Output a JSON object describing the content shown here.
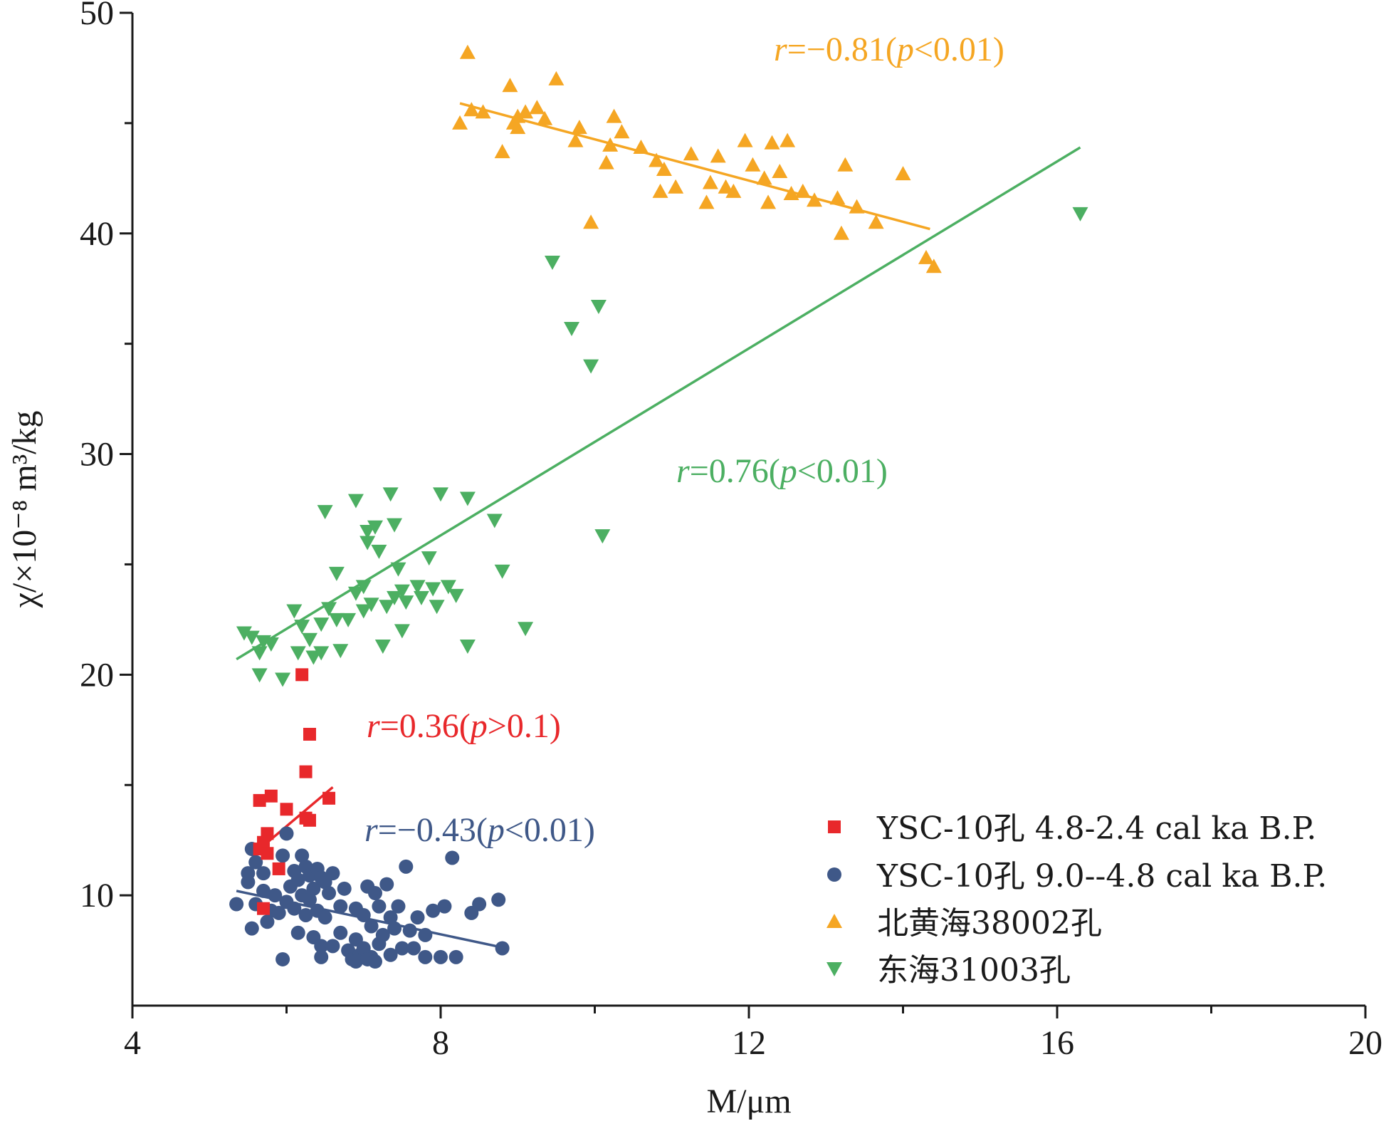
{
  "chart_data": {
    "type": "scatter",
    "xlabel": "M/μm",
    "ylabel": "χ/×10⁻⁸ m³/kg",
    "xlim": [
      4,
      20
    ],
    "ylim": [
      5,
      50
    ],
    "x_ticks": [
      4,
      8,
      12,
      16,
      20
    ],
    "y_ticks": [
      10,
      20,
      30,
      40,
      50
    ],
    "grid": false,
    "legend_placement": "bottom-right",
    "series": [
      {
        "name": "YSC-10孔 4.8-2.4 cal ka B.P.",
        "marker": "square",
        "color": "#e8282b",
        "points": [
          [
            6.2,
            20.0
          ],
          [
            6.3,
            17.3
          ],
          [
            6.25,
            15.6
          ],
          [
            5.65,
            14.3
          ],
          [
            5.8,
            14.5
          ],
          [
            6.55,
            14.4
          ],
          [
            6.0,
            13.9
          ],
          [
            6.25,
            13.5
          ],
          [
            6.3,
            13.4
          ],
          [
            5.75,
            12.8
          ],
          [
            5.7,
            12.4
          ],
          [
            5.65,
            12.1
          ],
          [
            5.75,
            11.9
          ],
          [
            5.9,
            11.2
          ],
          [
            5.7,
            9.4
          ]
        ],
        "trendline": {
          "x": [
            5.65,
            6.6
          ],
          "y": [
            12.1,
            14.9
          ]
        },
        "annotation": {
          "r": "r",
          "text1": "=0.36(",
          "p": "p",
          "text2": ">0.1)"
        }
      },
      {
        "name": "YSC-10孔  9.0--4.8 cal ka B.P.",
        "marker": "circle",
        "color": "#3f5888",
        "points": [
          [
            5.35,
            9.6
          ],
          [
            5.5,
            11.0
          ],
          [
            5.5,
            10.6
          ],
          [
            5.55,
            12.1
          ],
          [
            5.55,
            8.5
          ],
          [
            5.6,
            9.6
          ],
          [
            5.6,
            11.5
          ],
          [
            5.7,
            11.0
          ],
          [
            5.7,
            10.2
          ],
          [
            5.75,
            8.8
          ],
          [
            5.8,
            9.3
          ],
          [
            5.85,
            10.0
          ],
          [
            5.9,
            9.2
          ],
          [
            5.95,
            11.8
          ],
          [
            6.0,
            9.7
          ],
          [
            6.0,
            12.8
          ],
          [
            6.05,
            10.4
          ],
          [
            6.1,
            11.1
          ],
          [
            6.1,
            9.4
          ],
          [
            6.15,
            10.7
          ],
          [
            6.15,
            8.3
          ],
          [
            6.2,
            11.8
          ],
          [
            6.2,
            10.0
          ],
          [
            6.25,
            9.1
          ],
          [
            6.25,
            11.3
          ],
          [
            6.3,
            10.9
          ],
          [
            6.3,
            9.8
          ],
          [
            6.35,
            10.3
          ],
          [
            6.35,
            8.1
          ],
          [
            6.4,
            11.2
          ],
          [
            6.4,
            9.3
          ],
          [
            6.45,
            10.8
          ],
          [
            6.45,
            7.7
          ],
          [
            6.5,
            10.6
          ],
          [
            6.5,
            9.0
          ],
          [
            6.55,
            10.1
          ],
          [
            6.6,
            11.0
          ],
          [
            6.6,
            7.7
          ],
          [
            6.7,
            9.5
          ],
          [
            6.7,
            8.3
          ],
          [
            6.75,
            10.3
          ],
          [
            6.8,
            7.5
          ],
          [
            6.85,
            7.1
          ],
          [
            6.9,
            8.0
          ],
          [
            6.9,
            9.4
          ],
          [
            6.95,
            7.3
          ],
          [
            7.0,
            9.1
          ],
          [
            7.0,
            7.6
          ],
          [
            7.05,
            10.4
          ],
          [
            7.1,
            8.6
          ],
          [
            7.1,
            7.2
          ],
          [
            7.15,
            10.1
          ],
          [
            7.2,
            9.5
          ],
          [
            7.2,
            7.8
          ],
          [
            7.25,
            8.2
          ],
          [
            7.3,
            10.5
          ],
          [
            7.35,
            9.0
          ],
          [
            7.35,
            7.3
          ],
          [
            7.4,
            8.5
          ],
          [
            7.45,
            9.5
          ],
          [
            7.5,
            7.6
          ],
          [
            7.55,
            11.3
          ],
          [
            7.6,
            8.4
          ],
          [
            7.65,
            7.6
          ],
          [
            7.7,
            9.0
          ],
          [
            7.8,
            8.2
          ],
          [
            7.8,
            7.2
          ],
          [
            7.9,
            9.3
          ],
          [
            8.0,
            7.2
          ],
          [
            8.05,
            9.5
          ],
          [
            8.15,
            11.7
          ],
          [
            8.2,
            7.2
          ],
          [
            8.4,
            9.2
          ],
          [
            8.5,
            9.6
          ],
          [
            8.75,
            9.8
          ],
          [
            8.8,
            7.6
          ],
          [
            5.95,
            7.1
          ],
          [
            6.45,
            7.2
          ],
          [
            6.9,
            7.0
          ],
          [
            7.05,
            7.1
          ],
          [
            7.15,
            7.0
          ]
        ],
        "trendline": {
          "x": [
            5.35,
            8.85
          ],
          "y": [
            10.2,
            7.6
          ]
        },
        "annotation": {
          "r": "r",
          "text1": "=−0.43(",
          "p": "p",
          "text2": "<0.01)"
        }
      },
      {
        "name": "北黄海38002孔",
        "marker": "triangle-up",
        "color": "#f5a623",
        "points": [
          [
            8.35,
            48.2
          ],
          [
            8.25,
            45.0
          ],
          [
            8.4,
            45.6
          ],
          [
            8.55,
            45.5
          ],
          [
            8.8,
            43.7
          ],
          [
            8.9,
            46.7
          ],
          [
            8.95,
            45.0
          ],
          [
            9.0,
            45.3
          ],
          [
            9.0,
            44.8
          ],
          [
            9.1,
            45.5
          ],
          [
            9.25,
            45.7
          ],
          [
            9.35,
            45.2
          ],
          [
            9.5,
            47.0
          ],
          [
            9.75,
            44.2
          ],
          [
            9.8,
            44.8
          ],
          [
            9.95,
            40.5
          ],
          [
            10.15,
            43.2
          ],
          [
            10.2,
            44.0
          ],
          [
            10.25,
            45.3
          ],
          [
            10.35,
            44.6
          ],
          [
            10.6,
            43.9
          ],
          [
            10.8,
            43.3
          ],
          [
            10.85,
            41.9
          ],
          [
            10.9,
            42.9
          ],
          [
            11.05,
            42.1
          ],
          [
            11.25,
            43.6
          ],
          [
            11.45,
            41.4
          ],
          [
            11.5,
            42.3
          ],
          [
            11.6,
            43.5
          ],
          [
            11.7,
            42.1
          ],
          [
            11.8,
            41.9
          ],
          [
            11.95,
            44.2
          ],
          [
            12.05,
            43.1
          ],
          [
            12.2,
            42.5
          ],
          [
            12.25,
            41.4
          ],
          [
            12.3,
            44.1
          ],
          [
            12.4,
            42.8
          ],
          [
            12.5,
            44.2
          ],
          [
            12.55,
            41.8
          ],
          [
            12.7,
            41.9
          ],
          [
            12.85,
            41.5
          ],
          [
            13.15,
            41.6
          ],
          [
            13.2,
            40.0
          ],
          [
            13.25,
            43.1
          ],
          [
            13.4,
            41.2
          ],
          [
            13.65,
            40.5
          ],
          [
            14.0,
            42.7
          ],
          [
            14.3,
            38.9
          ],
          [
            14.4,
            38.5
          ]
        ],
        "trendline": {
          "x": [
            8.25,
            14.35
          ],
          "y": [
            45.9,
            40.2
          ]
        },
        "annotation": {
          "r": "r",
          "text1": "=−0.81(",
          "p": "p",
          "text2": "<0.01)"
        }
      },
      {
        "name": "东海31003孔",
        "marker": "triangle-down",
        "color": "#4caf62",
        "points": [
          [
            5.45,
            21.9
          ],
          [
            5.55,
            21.7
          ],
          [
            5.65,
            21.0
          ],
          [
            5.65,
            20.0
          ],
          [
            5.7,
            21.5
          ],
          [
            5.8,
            21.4
          ],
          [
            5.95,
            19.8
          ],
          [
            6.1,
            22.9
          ],
          [
            6.15,
            21.0
          ],
          [
            6.2,
            22.2
          ],
          [
            6.3,
            21.6
          ],
          [
            6.35,
            20.8
          ],
          [
            6.45,
            22.3
          ],
          [
            6.45,
            21.0
          ],
          [
            6.5,
            27.4
          ],
          [
            6.55,
            23.0
          ],
          [
            6.65,
            22.5
          ],
          [
            6.65,
            24.6
          ],
          [
            6.7,
            21.1
          ],
          [
            6.8,
            22.5
          ],
          [
            6.9,
            23.7
          ],
          [
            6.9,
            27.9
          ],
          [
            7.0,
            24.0
          ],
          [
            7.0,
            22.9
          ],
          [
            7.05,
            26.5
          ],
          [
            7.05,
            26.0
          ],
          [
            7.1,
            23.2
          ],
          [
            7.15,
            26.7
          ],
          [
            7.2,
            25.6
          ],
          [
            7.25,
            21.3
          ],
          [
            7.3,
            23.1
          ],
          [
            7.35,
            28.2
          ],
          [
            7.4,
            26.8
          ],
          [
            7.4,
            23.5
          ],
          [
            7.45,
            24.8
          ],
          [
            7.5,
            22.0
          ],
          [
            7.5,
            23.8
          ],
          [
            7.55,
            23.3
          ],
          [
            7.7,
            24.0
          ],
          [
            7.75,
            23.5
          ],
          [
            7.85,
            25.3
          ],
          [
            7.9,
            23.9
          ],
          [
            7.95,
            23.1
          ],
          [
            8.0,
            28.2
          ],
          [
            8.1,
            24.0
          ],
          [
            8.2,
            23.6
          ],
          [
            8.35,
            28.0
          ],
          [
            8.35,
            21.3
          ],
          [
            8.7,
            27.0
          ],
          [
            8.8,
            24.7
          ],
          [
            9.1,
            22.1
          ],
          [
            9.45,
            38.7
          ],
          [
            9.7,
            35.7
          ],
          [
            9.95,
            34.0
          ],
          [
            10.05,
            36.7
          ],
          [
            10.1,
            26.3
          ],
          [
            16.3,
            40.9
          ]
        ],
        "trendline": {
          "x": [
            5.35,
            16.3
          ],
          "y": [
            20.7,
            43.9
          ]
        },
        "annotation": {
          "r": "r",
          "text1": "=0.76(",
          "p": "p",
          "text2": "<0.01)"
        }
      }
    ]
  }
}
